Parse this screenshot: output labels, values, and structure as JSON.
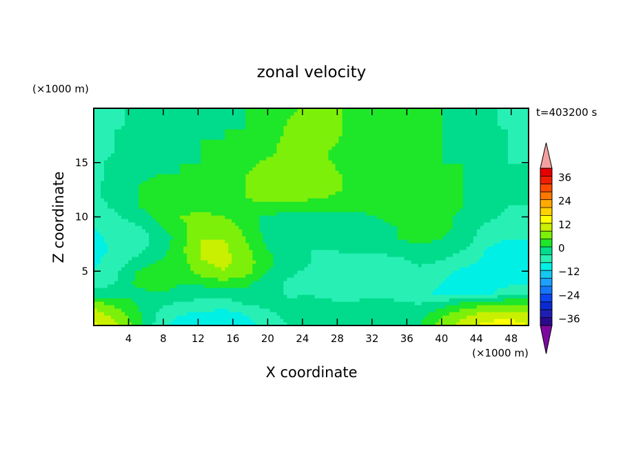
{
  "chart_data": {
    "type": "heatmap",
    "title": "zonal velocity",
    "xlabel": "X coordinate",
    "ylabel": "Z coordinate",
    "x_unit": "(×1000 m)",
    "y_unit": "(×1000 m)",
    "time_label": "t=403200 s",
    "xlim": [
      0,
      50
    ],
    "ylim": [
      0,
      20
    ],
    "x_ticks": [
      4,
      8,
      12,
      16,
      20,
      24,
      28,
      32,
      36,
      40,
      44,
      48
    ],
    "y_ticks": [
      5,
      10,
      15
    ],
    "colorbar": {
      "levels": [
        -40,
        -36,
        -32,
        -28,
        -24,
        -20,
        -16,
        -12,
        -8,
        -4,
        0,
        4,
        8,
        12,
        16,
        20,
        24,
        28,
        32,
        36,
        40
      ],
      "colors": [
        "#2a0a8c",
        "#1e1eb4",
        "#0a2ad2",
        "#0a46f0",
        "#1478ff",
        "#1ea0ff",
        "#14c8f0",
        "#00f0e6",
        "#28f0b4",
        "#00dc8c",
        "#1ee628",
        "#7df00a",
        "#c8f000",
        "#ffff00",
        "#ffd200",
        "#ffaa00",
        "#ff7800",
        "#ff4b00",
        "#f01e00",
        "#e60000"
      ],
      "over_color": "#f5a0a0",
      "under_color": "#7d0aa0",
      "tick_labels": [
        "36",
        "24",
        "12",
        "0",
        "−12",
        "−24",
        "−36"
      ],
      "tick_values": [
        36,
        24,
        12,
        0,
        -12,
        -24,
        -36
      ]
    },
    "grid": {
      "x": [
        0,
        2.5,
        5,
        7.5,
        10,
        12.5,
        15,
        17.5,
        20,
        22.5,
        25,
        27.5,
        30,
        32.5,
        35,
        37.5,
        40,
        42.5,
        45,
        47.5,
        50
      ],
      "z": [
        0,
        1,
        2,
        3,
        4,
        5,
        6,
        7,
        8,
        9,
        10,
        11,
        12,
        13,
        14,
        15,
        16,
        17,
        18,
        19,
        20
      ],
      "values": [
        [
          13,
          9,
          2,
          -6,
          -10,
          -10,
          -12,
          -10,
          -6,
          -4,
          -2,
          -4,
          -3,
          -2,
          -2,
          0,
          6,
          10,
          13,
          14,
          12
        ],
        [
          10,
          7,
          1,
          -5,
          -8,
          -9,
          -10,
          -8,
          -5,
          -3,
          -1,
          -2,
          -2,
          -1,
          -1,
          -1,
          3,
          7,
          10,
          11,
          10
        ],
        [
          6,
          3,
          0,
          -3,
          -5,
          -6,
          -6,
          -4,
          -3,
          -2,
          -1,
          -3,
          -3,
          -2,
          -3,
          -4,
          -2,
          1,
          3,
          4,
          4
        ],
        [
          -3,
          -2,
          -1,
          0,
          -1,
          -2,
          -2,
          -1,
          -2,
          -5,
          -5,
          -6,
          -6,
          -6,
          -6,
          -7,
          -9,
          -9,
          -9,
          -6,
          -6
        ],
        [
          -6,
          -4,
          1,
          2,
          0,
          1,
          3,
          1,
          -2,
          -5,
          -6,
          -8,
          -7,
          -5,
          -5,
          -6,
          -8,
          -10,
          -11,
          -9,
          -8
        ],
        [
          -8,
          -5,
          0,
          3,
          2,
          6,
          8,
          6,
          0,
          -3,
          -5,
          -7,
          -8,
          -6,
          -6,
          -5,
          -7,
          -9,
          -10,
          -9,
          -10
        ],
        [
          -9,
          -6,
          -3,
          0,
          2,
          8,
          9,
          6,
          1,
          -2,
          -4,
          -5,
          -6,
          -6,
          -5,
          -3,
          -4,
          -6,
          -9,
          -11,
          -11
        ],
        [
          -10,
          -7,
          -5,
          -2,
          3,
          9,
          9,
          5,
          0,
          -2,
          -4,
          -4,
          -3,
          -3,
          -2,
          -1,
          -2,
          -4,
          -8,
          -10,
          -10
        ],
        [
          -9,
          -7,
          -6,
          -3,
          2,
          8,
          8,
          4,
          -1,
          -3,
          -4,
          -4,
          -2,
          -1,
          0,
          1,
          0,
          -2,
          -6,
          -8,
          -8
        ],
        [
          -8,
          -6,
          -5,
          -1,
          3,
          7,
          6,
          3,
          -2,
          -4,
          -4,
          -3,
          -2,
          -1,
          0,
          1,
          1,
          -1,
          -5,
          -6,
          -6
        ],
        [
          -7,
          -5,
          -2,
          1,
          4,
          5,
          4,
          2,
          -1,
          -2,
          -3,
          -2,
          -1,
          0,
          1,
          1,
          1,
          -1,
          -3,
          -5,
          -5
        ],
        [
          -6,
          -3,
          0,
          2,
          3,
          3,
          2,
          3,
          3,
          3,
          2,
          2,
          1,
          1,
          2,
          2,
          2,
          0,
          -2,
          -4,
          -4
        ],
        [
          -5,
          -2,
          0,
          1,
          2,
          2,
          2,
          4,
          6,
          6,
          5,
          4,
          3,
          2,
          2,
          2,
          2,
          0,
          -2,
          -4,
          -4
        ],
        [
          -5,
          -2,
          0,
          1,
          1,
          1,
          2,
          4,
          7,
          7,
          6,
          5,
          3,
          2,
          2,
          2,
          2,
          0,
          -2,
          -4,
          -4
        ],
        [
          -5,
          -3,
          -1,
          0,
          0,
          1,
          2,
          4,
          6,
          7,
          6,
          5,
          2,
          1,
          1,
          1,
          1,
          0,
          -2,
          -4,
          -4
        ],
        [
          -5,
          -3,
          -2,
          -1,
          0,
          0,
          1,
          3,
          5,
          6,
          6,
          4,
          1,
          0,
          0,
          0,
          0,
          0,
          -2,
          -4,
          -4
        ],
        [
          -5,
          -4,
          -3,
          -2,
          -1,
          0,
          1,
          2,
          3,
          6,
          7,
          3,
          1,
          0,
          0,
          0,
          0,
          -1,
          -3,
          -4,
          -5
        ],
        [
          -5,
          -4,
          -3,
          -2,
          -1,
          0,
          0,
          1,
          2,
          6,
          7,
          5,
          1,
          0,
          0,
          0,
          0,
          -1,
          -3,
          -4,
          -5
        ],
        [
          -6,
          -4,
          -3,
          -2,
          -1,
          -1,
          0,
          0,
          1,
          5,
          7,
          6,
          2,
          0,
          0,
          0,
          0,
          -2,
          -3,
          -4,
          -5
        ],
        [
          -6,
          -5,
          -3,
          -2,
          -1,
          -1,
          -1,
          0,
          1,
          4,
          6,
          6,
          2,
          0,
          0,
          0,
          0,
          -2,
          -3,
          -5,
          -5
        ],
        [
          -6,
          -5,
          -3,
          -2,
          -1,
          -1,
          -1,
          0,
          1,
          3,
          5,
          5,
          2,
          0,
          0,
          0,
          0,
          -2,
          -3,
          -5,
          -5
        ]
      ]
    }
  }
}
